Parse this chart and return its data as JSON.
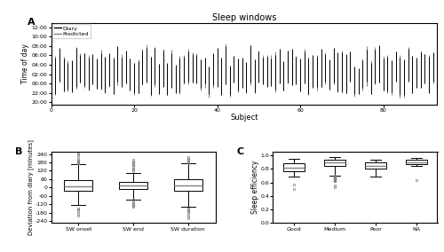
{
  "title_A": "Sleep windows",
  "xlabel_A": "Subject",
  "ylabel_A": "Time of day",
  "yticks_A": [
    "20:00",
    "22:00",
    "00:00",
    "02:00",
    "04:00",
    "06:00",
    "08:00",
    "10:00",
    "12:00"
  ],
  "ytick_vals_A": [
    20,
    22,
    24,
    26,
    28,
    30,
    32,
    34,
    36
  ],
  "ylim_A": [
    19.5,
    37
  ],
  "xlim_A": [
    0,
    93
  ],
  "xticks_A": [
    0,
    20,
    40,
    60,
    80
  ],
  "n_subjects": 92,
  "ylabel_B": "Deviation from diary [minutes]",
  "categories_B": [
    "SW onset",
    "SW end",
    "SW duration"
  ],
  "ylim_B": [
    -255,
    255
  ],
  "yticks_B": [
    -240,
    -180,
    -120,
    -60,
    0,
    60,
    120,
    180,
    240
  ],
  "sw_onset": {
    "q1": -22,
    "median": 5,
    "q3": 42,
    "whisker_low": -125,
    "whisker_high": 118,
    "outliers": [
      155,
      158,
      162,
      168,
      172,
      176,
      180,
      185,
      195,
      200,
      215,
      235,
      242,
      -148,
      -158,
      -172,
      -192,
      -200
    ]
  },
  "sw_end": {
    "q1": -8,
    "median": 12,
    "q3": 32,
    "whisker_low": -88,
    "whisker_high": 72,
    "outliers": [
      80,
      90,
      105,
      118,
      128,
      138,
      148,
      158,
      168,
      178,
      188,
      198,
      -75,
      -82,
      -90,
      -100,
      -110,
      -120,
      -130,
      -140
    ]
  },
  "sw_duration": {
    "q1": -18,
    "median": 12,
    "q3": 48,
    "whisker_low": -125,
    "whisker_high": 128,
    "outliers": [
      138,
      148,
      158,
      165,
      172,
      180,
      188,
      198,
      208,
      220,
      -138,
      -148,
      -158,
      -168,
      -178,
      -195,
      -208,
      -218
    ]
  },
  "ylabel_C": "Sleep efficiency",
  "categories_C": [
    "Good",
    "Medium",
    "Poor",
    "NA"
  ],
  "ylim_C": [
    0.0,
    1.05
  ],
  "yticks_C": [
    0.0,
    0.2,
    0.4,
    0.6,
    0.8,
    1.0
  ],
  "good": {
    "q1": 0.77,
    "median": 0.82,
    "q3": 0.88,
    "whisker_low": 0.69,
    "whisker_high": 0.95,
    "outliers": [
      0.57,
      0.5
    ]
  },
  "medium": {
    "q1": 0.84,
    "median": 0.89,
    "q3": 0.93,
    "whisker_low": 0.62,
    "whisker_high": 0.98,
    "outliers": [
      0.55,
      0.53
    ]
  },
  "poor": {
    "q1": 0.8,
    "median": 0.84,
    "q3": 0.89,
    "whisker_low": 0.68,
    "whisker_high": 0.93,
    "outliers": []
  },
  "na": {
    "q1": 0.87,
    "median": 0.9,
    "q3": 0.93,
    "whisker_low": 0.84,
    "whisker_high": 0.96,
    "outliers": [
      0.63
    ]
  },
  "box_facecolor": "white",
  "box_edgecolor": "black",
  "median_color": "gray",
  "whisker_color": "black",
  "flier_color": "gray",
  "background_color": "white"
}
